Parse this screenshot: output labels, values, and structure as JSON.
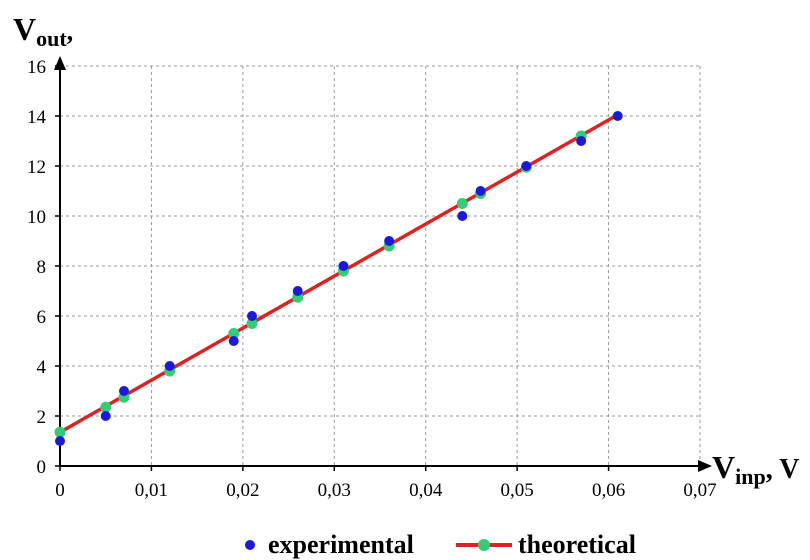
{
  "chart_data": {
    "type": "scatter",
    "xlabel": {
      "main": "V",
      "sub": "inp",
      "suffix": ", V"
    },
    "ylabel": {
      "main": "V",
      "sub": "out",
      "suffix": ","
    },
    "xlim": [
      0,
      0.07
    ],
    "ylim": [
      0,
      16
    ],
    "x_ticks": [
      0,
      0.01,
      0.02,
      0.03,
      0.04,
      0.05,
      0.06,
      0.07
    ],
    "x_tick_labels": [
      "0",
      "0,01",
      "0,02",
      "0,03",
      "0,04",
      "0,05",
      "0,06",
      "0,07"
    ],
    "y_ticks": [
      0,
      2,
      4,
      6,
      8,
      10,
      12,
      14,
      16
    ],
    "y_tick_labels": [
      "0",
      "2",
      "4",
      "6",
      "8",
      "10",
      "12",
      "14",
      "16"
    ],
    "grid": true,
    "legend_position": "bottom",
    "series": [
      {
        "name": "experimental",
        "kind": "points",
        "color": "#1a1adc",
        "points": [
          {
            "x": 0,
            "y": 1
          },
          {
            "x": 0.005,
            "y": 2
          },
          {
            "x": 0.007,
            "y": 3
          },
          {
            "x": 0.012,
            "y": 4
          },
          {
            "x": 0.019,
            "y": 5
          },
          {
            "x": 0.021,
            "y": 6
          },
          {
            "x": 0.026,
            "y": 7
          },
          {
            "x": 0.031,
            "y": 8
          },
          {
            "x": 0.036,
            "y": 9
          },
          {
            "x": 0.044,
            "y": 10
          },
          {
            "x": 0.046,
            "y": 11
          },
          {
            "x": 0.051,
            "y": 12
          },
          {
            "x": 0.057,
            "y": 13
          },
          {
            "x": 0.061,
            "y": 14
          }
        ]
      },
      {
        "name": "theoretical",
        "kind": "line-with-markers",
        "color": "#dd2222",
        "marker_color": "#33cc77",
        "line": [
          {
            "x": 0,
            "y": 1.35
          },
          {
            "x": 0.061,
            "y": 14.05
          }
        ],
        "points": [
          {
            "x": 0,
            "y": 1.35
          },
          {
            "x": 0.005,
            "y": 2.35
          },
          {
            "x": 0.007,
            "y": 2.75
          },
          {
            "x": 0.012,
            "y": 3.8
          },
          {
            "x": 0.019,
            "y": 5.3
          },
          {
            "x": 0.021,
            "y": 5.7
          },
          {
            "x": 0.026,
            "y": 6.75
          },
          {
            "x": 0.031,
            "y": 7.8
          },
          {
            "x": 0.036,
            "y": 8.8
          },
          {
            "x": 0.044,
            "y": 10.5
          },
          {
            "x": 0.046,
            "y": 10.9
          },
          {
            "x": 0.051,
            "y": 11.95
          },
          {
            "x": 0.057,
            "y": 13.2
          }
        ]
      }
    ]
  }
}
